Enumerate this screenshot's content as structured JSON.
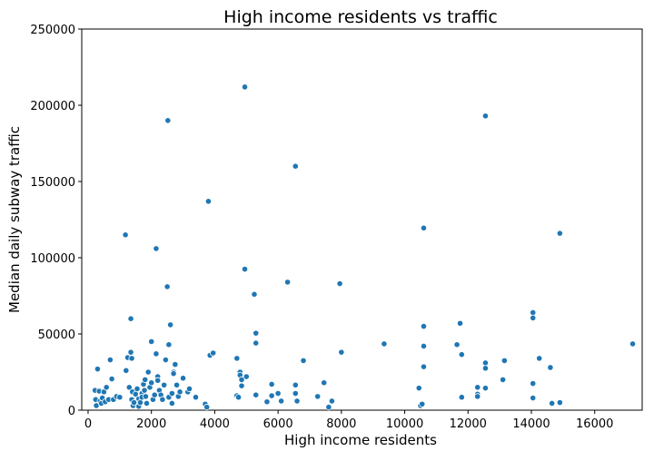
{
  "chart_data": {
    "type": "scatter",
    "title": "High income residents vs traffic",
    "xlabel": "High income residents",
    "ylabel": "Median daily subway traffic",
    "xlim": [
      -200,
      17500
    ],
    "ylim": [
      0,
      250000
    ],
    "xticks": [
      0,
      2000,
      4000,
      6000,
      8000,
      10000,
      12000,
      14000,
      16000
    ],
    "yticks": [
      0,
      50000,
      100000,
      150000,
      200000,
      250000
    ],
    "marker_color": "#1f77b4",
    "grid": false,
    "points": [
      [
        220,
        13000
      ],
      [
        240,
        7000
      ],
      [
        260,
        3000
      ],
      [
        300,
        27000
      ],
      [
        350,
        12500
      ],
      [
        380,
        6000
      ],
      [
        420,
        4500
      ],
      [
        450,
        8000
      ],
      [
        500,
        12000
      ],
      [
        540,
        5500
      ],
      [
        580,
        15000
      ],
      [
        650,
        7000
      ],
      [
        700,
        33000
      ],
      [
        750,
        20500
      ],
      [
        800,
        7000
      ],
      [
        900,
        9000
      ],
      [
        1000,
        8500
      ],
      [
        1180,
        115000
      ],
      [
        1200,
        26000
      ],
      [
        1250,
        34500
      ],
      [
        1300,
        15000
      ],
      [
        1350,
        60000
      ],
      [
        1350,
        38000
      ],
      [
        1380,
        34000
      ],
      [
        1380,
        7000
      ],
      [
        1400,
        12000
      ],
      [
        1420,
        3000
      ],
      [
        1450,
        5000
      ],
      [
        1500,
        10500
      ],
      [
        1550,
        14000
      ],
      [
        1600,
        7500
      ],
      [
        1600,
        2500
      ],
      [
        1650,
        5000
      ],
      [
        1700,
        11000
      ],
      [
        1700,
        8500
      ],
      [
        1750,
        17000
      ],
      [
        1780,
        13000
      ],
      [
        1800,
        20000
      ],
      [
        1820,
        9000
      ],
      [
        1850,
        4500
      ],
      [
        1900,
        25000
      ],
      [
        1950,
        15000
      ],
      [
        2000,
        18000
      ],
      [
        2000,
        45000
      ],
      [
        2050,
        7000
      ],
      [
        2100,
        10000
      ],
      [
        2150,
        106000
      ],
      [
        2150,
        37000
      ],
      [
        2200,
        22000
      ],
      [
        2200,
        19500
      ],
      [
        2250,
        13000
      ],
      [
        2300,
        10000
      ],
      [
        2350,
        7000
      ],
      [
        2400,
        16500
      ],
      [
        2450,
        33000
      ],
      [
        2500,
        81000
      ],
      [
        2520,
        190000
      ],
      [
        2550,
        43000
      ],
      [
        2550,
        8500
      ],
      [
        2600,
        56000
      ],
      [
        2650,
        11000
      ],
      [
        2650,
        4500
      ],
      [
        2700,
        25000
      ],
      [
        2700,
        24000
      ],
      [
        2750,
        30000
      ],
      [
        2800,
        16500
      ],
      [
        2850,
        9000
      ],
      [
        2900,
        12000
      ],
      [
        3000,
        21000
      ],
      [
        3150,
        12000
      ],
      [
        3200,
        14000
      ],
      [
        3400,
        8500
      ],
      [
        3700,
        4000
      ],
      [
        3750,
        2000
      ],
      [
        3800,
        137000
      ],
      [
        3850,
        36000
      ],
      [
        3950,
        37500
      ],
      [
        4700,
        34000
      ],
      [
        4700,
        9500
      ],
      [
        4750,
        8500
      ],
      [
        4800,
        25000
      ],
      [
        4800,
        23000
      ],
      [
        4850,
        16000
      ],
      [
        4850,
        20000
      ],
      [
        4950,
        212000
      ],
      [
        4950,
        92500
      ],
      [
        5000,
        22000
      ],
      [
        5250,
        76000
      ],
      [
        5300,
        50500
      ],
      [
        5300,
        44000
      ],
      [
        5300,
        10000
      ],
      [
        5650,
        5500
      ],
      [
        5800,
        17000
      ],
      [
        5800,
        9500
      ],
      [
        6000,
        11000
      ],
      [
        6100,
        6000
      ],
      [
        6300,
        84000
      ],
      [
        6550,
        160000
      ],
      [
        6550,
        16500
      ],
      [
        6550,
        11000
      ],
      [
        6600,
        6000
      ],
      [
        6800,
        32500
      ],
      [
        7250,
        9000
      ],
      [
        7450,
        18000
      ],
      [
        7600,
        2000
      ],
      [
        7700,
        6000
      ],
      [
        7950,
        83000
      ],
      [
        8000,
        38000
      ],
      [
        9350,
        43500
      ],
      [
        10450,
        14500
      ],
      [
        10500,
        3000
      ],
      [
        10550,
        4000
      ],
      [
        10600,
        119500
      ],
      [
        10600,
        55000
      ],
      [
        10600,
        42000
      ],
      [
        10600,
        28500
      ],
      [
        11650,
        43000
      ],
      [
        11750,
        57000
      ],
      [
        11800,
        36500
      ],
      [
        11800,
        8500
      ],
      [
        12300,
        15000
      ],
      [
        12300,
        10500
      ],
      [
        12300,
        9000
      ],
      [
        12550,
        193000
      ],
      [
        12550,
        31000
      ],
      [
        12550,
        27500
      ],
      [
        12550,
        14500
      ],
      [
        13100,
        20000
      ],
      [
        13150,
        32500
      ],
      [
        14050,
        64000
      ],
      [
        14050,
        60500
      ],
      [
        14050,
        17500
      ],
      [
        14050,
        8000
      ],
      [
        14250,
        34000
      ],
      [
        14600,
        28000
      ],
      [
        14650,
        4500
      ],
      [
        14900,
        116000
      ],
      [
        14900,
        5000
      ],
      [
        17200,
        43500
      ]
    ]
  }
}
